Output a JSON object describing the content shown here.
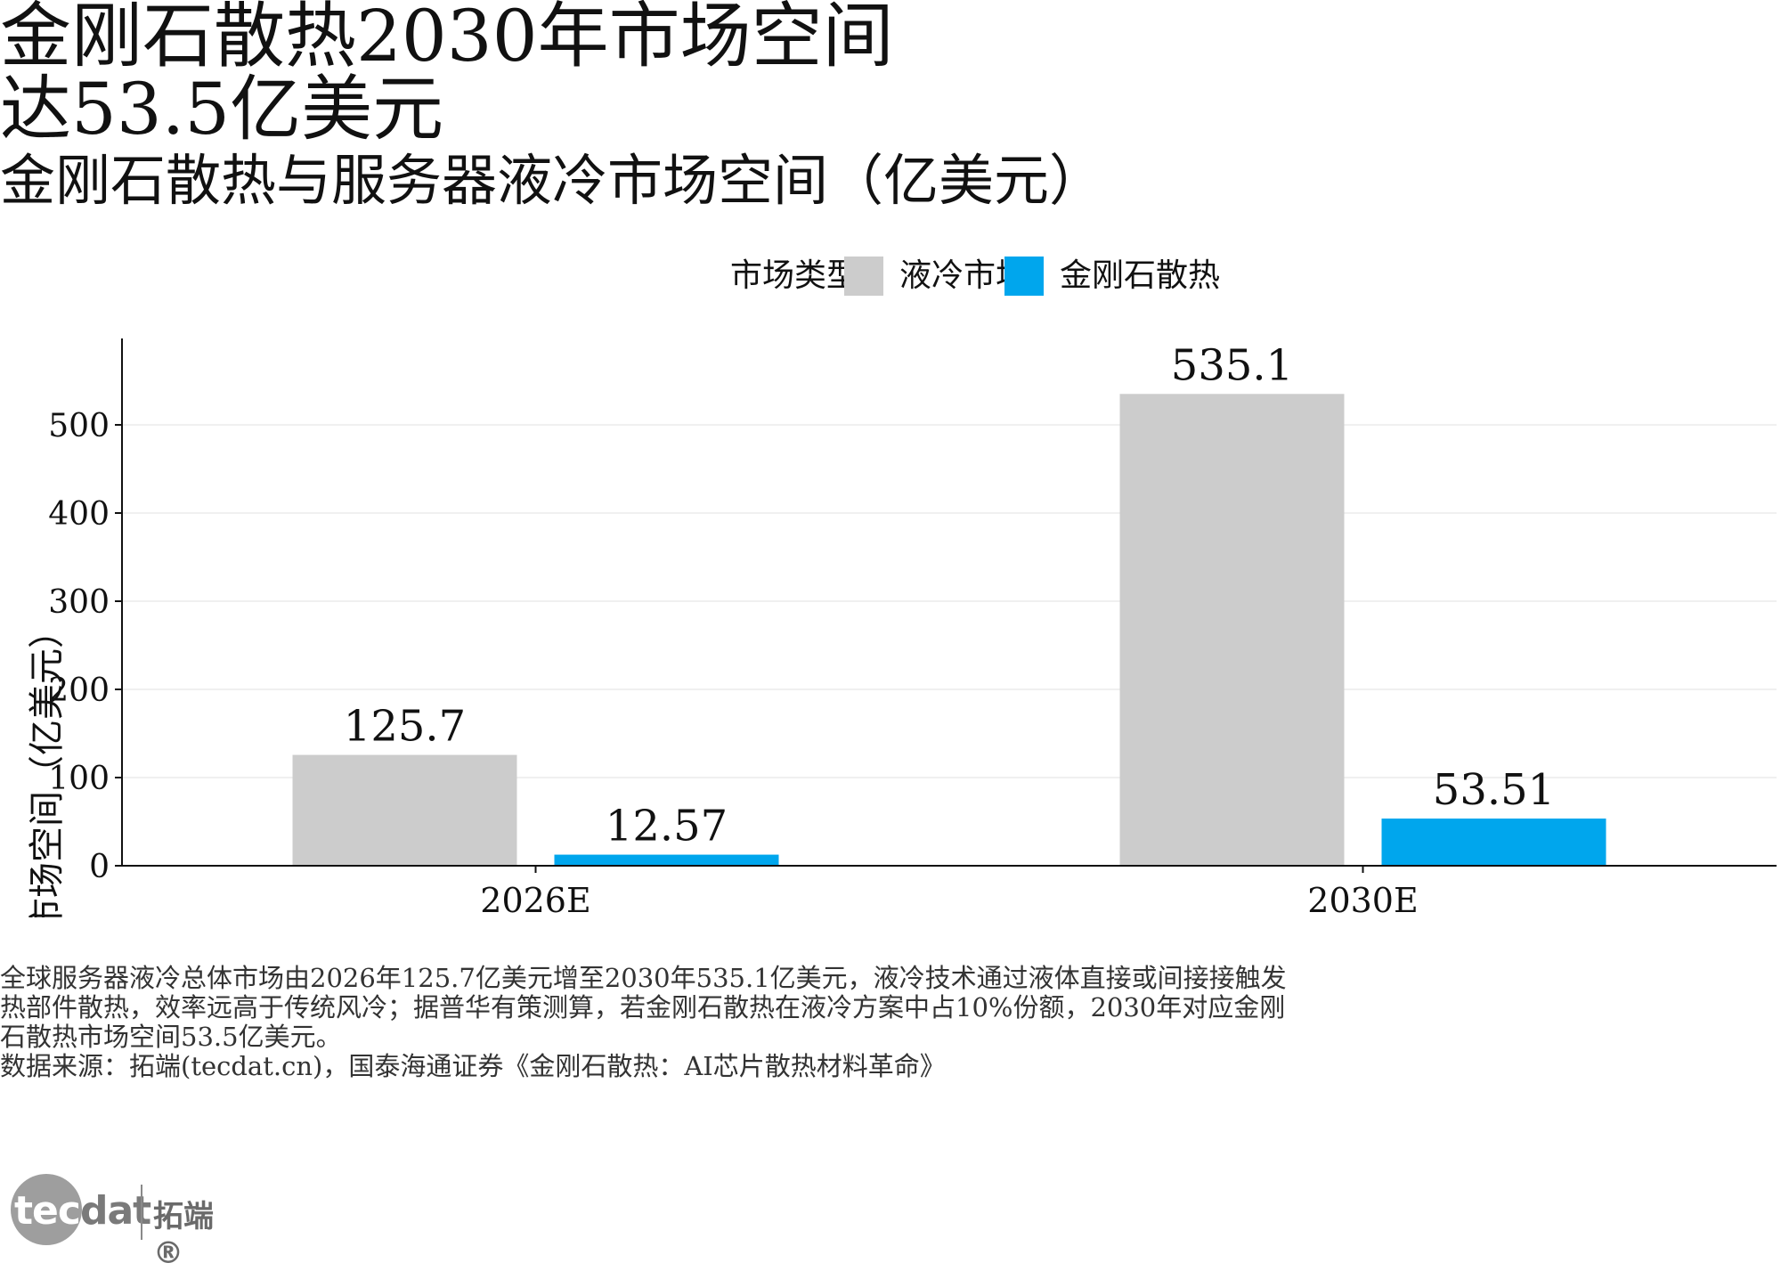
{
  "title": "金刚石散热2030年市场空间\n达53.5亿美元",
  "subtitle": "金刚石散热与服务器液冷市场空间（亿美元）",
  "legend": {
    "title": "市场类型",
    "items": [
      {
        "label": "液冷市场",
        "color": "#cccccc"
      },
      {
        "label": "金刚石散热",
        "color": "#00a6ed"
      }
    ]
  },
  "note": "全球服务器液冷总体市场由2026年125.7亿美元增至2030年535.1亿美元，液冷技术通过液体直接或间接接触发热部件散热，效率远高于传统风冷；据普华有策测算，若金刚石散热在液冷方案中占10%份额，2030年对应金刚石散热市场空间53.5亿美元。",
  "source": "数据来源：拓端(tecdat.cn)，国泰海通证券《金刚石散热：AI芯片散热材料革命》",
  "logo": {
    "word_a": "tec",
    "word_b": "dat",
    "cn": "拓端",
    "mark": "®"
  },
  "chart_data": {
    "type": "bar",
    "categories": [
      "2026E",
      "2030E"
    ],
    "series": [
      {
        "name": "液冷市场",
        "values": [
          125.7,
          535.1
        ],
        "labels": [
          "125.7",
          "535.1"
        ],
        "color": "#cccccc"
      },
      {
        "name": "金刚石散热",
        "values": [
          12.57,
          53.51
        ],
        "labels": [
          "12.57",
          "53.51"
        ],
        "color": "#00a6ed"
      }
    ],
    "ylabel": "市场空间（亿美元）",
    "xlabel": "",
    "yticks": [
      0,
      100,
      200,
      300,
      400,
      500
    ],
    "ylim": [
      0,
      598
    ],
    "grid": "horizontal",
    "legend_position": "top"
  }
}
